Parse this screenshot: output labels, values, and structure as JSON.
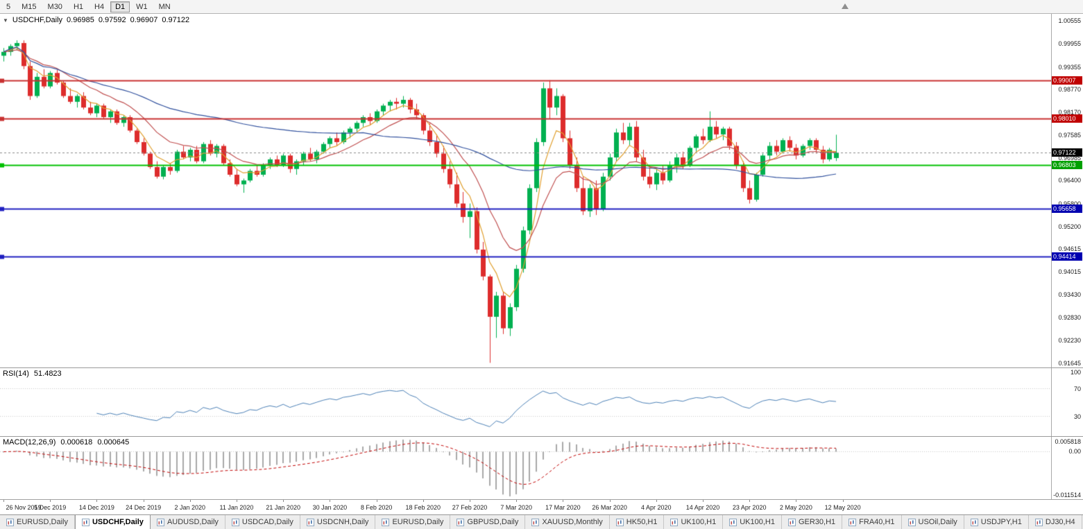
{
  "icons": {
    "collapse_arrow": "▼",
    "chart_shift_marker": "triangle-up",
    "tab_chart_icon": "mini-candlestick-chart"
  },
  "toolbar": {
    "buttons": [
      {
        "label": "5",
        "active": false
      },
      {
        "label": "M15",
        "active": false
      },
      {
        "label": "M30",
        "active": false
      },
      {
        "label": "H1",
        "active": false
      },
      {
        "label": "H4",
        "active": false
      },
      {
        "label": "D1",
        "active": true
      },
      {
        "label": "W1",
        "active": false
      },
      {
        "label": "MN",
        "active": false
      }
    ]
  },
  "chart_header": {
    "symbol": "USDCHF,Daily",
    "open": "0.96985",
    "high": "0.97592",
    "low": "0.96907",
    "close": "0.97122"
  },
  "price_axis": {
    "ticks": [
      "1.00555",
      "0.99955",
      "0.99355",
      "0.98770",
      "0.98170",
      "0.97585",
      "0.96985",
      "0.96400",
      "0.95800",
      "0.95200",
      "0.94615",
      "0.94015",
      "0.93430",
      "0.92830",
      "0.92230",
      "0.91645"
    ],
    "markers": [
      {
        "value": "0.99007",
        "bg": "#c00000"
      },
      {
        "value": "0.98010",
        "bg": "#c00000"
      },
      {
        "value": "0.97122",
        "bg": "#000000"
      },
      {
        "value": "0.96803",
        "bg": "#00a000"
      },
      {
        "value": "0.95658",
        "bg": "#0000b0"
      },
      {
        "value": "0.94414",
        "bg": "#0000b0"
      }
    ]
  },
  "chart_data": {
    "type": "candlestick",
    "symbol": "USDCHF",
    "timeframe": "Daily",
    "ylim": [
      0.9153,
      1.0074
    ],
    "label_every": 7,
    "x_labels": [
      "26 Nov 2019",
      "5 Dec 2019",
      "14 Dec 2019",
      "24 Dec 2019",
      "2 Jan 2020",
      "11 Jan 2020",
      "21 Jan 2020",
      "30 Jan 2020",
      "8 Feb 2020",
      "18 Feb 2020",
      "27 Feb 2020",
      "7 Mar 2020",
      "17 Mar 2020",
      "26 Mar 2020",
      "4 Apr 2020",
      "14 Apr 2020",
      "23 Apr 2020",
      "2 May 2020",
      "12 May 2020"
    ],
    "hlines": [
      {
        "price": 0.99007,
        "color": "#c83232",
        "width": 2
      },
      {
        "price": 0.9801,
        "color": "#c83232",
        "width": 2
      },
      {
        "price": 0.96803,
        "color": "#00c000",
        "width": 2
      },
      {
        "price": 0.95658,
        "color": "#2020c0",
        "width": 2
      },
      {
        "price": 0.94414,
        "color": "#2020c0",
        "width": 2
      }
    ],
    "current_price": {
      "price": 0.97122,
      "color": "#8a8a8a"
    },
    "colors": {
      "up": "#00b050",
      "down": "#dd2c2c"
    },
    "moving_averages": [
      {
        "period": 5,
        "method": "ema",
        "color": "#e0a030"
      },
      {
        "period": 13,
        "method": "ema",
        "color": "#c05050"
      },
      {
        "period": 55,
        "method": "sma",
        "color": "#30509d"
      }
    ],
    "candles": [
      [
        0.9965,
        0.9985,
        0.995,
        0.9975
      ],
      [
        0.9975,
        0.9995,
        0.9965,
        0.999
      ],
      [
        0.999,
        1.0005,
        0.998,
        0.9998
      ],
      [
        0.9998,
        1.0005,
        0.993,
        0.9938
      ],
      [
        0.9938,
        0.995,
        0.985,
        0.986
      ],
      [
        0.986,
        0.992,
        0.9855,
        0.991
      ],
      [
        0.991,
        0.993,
        0.988,
        0.9885
      ],
      [
        0.9885,
        0.9925,
        0.988,
        0.992
      ],
      [
        0.992,
        0.9928,
        0.989,
        0.9895
      ],
      [
        0.9895,
        0.99,
        0.9855,
        0.986
      ],
      [
        0.986,
        0.988,
        0.984,
        0.9845
      ],
      [
        0.9845,
        0.9865,
        0.983,
        0.986
      ],
      [
        0.986,
        0.987,
        0.9825,
        0.983
      ],
      [
        0.983,
        0.9845,
        0.981,
        0.9815
      ],
      [
        0.9815,
        0.984,
        0.9805,
        0.9835
      ],
      [
        0.9835,
        0.984,
        0.98,
        0.9805
      ],
      [
        0.9805,
        0.9825,
        0.979,
        0.982
      ],
      [
        0.982,
        0.9825,
        0.9785,
        0.979
      ],
      [
        0.979,
        0.981,
        0.978,
        0.9805
      ],
      [
        0.9805,
        0.981,
        0.9765,
        0.977
      ],
      [
        0.977,
        0.9775,
        0.9735,
        0.974
      ],
      [
        0.974,
        0.975,
        0.9705,
        0.971
      ],
      [
        0.971,
        0.9715,
        0.967,
        0.9675
      ],
      [
        0.9675,
        0.969,
        0.9645,
        0.965
      ],
      [
        0.965,
        0.968,
        0.9643,
        0.9675
      ],
      [
        0.9675,
        0.9685,
        0.9655,
        0.9665
      ],
      [
        0.9665,
        0.972,
        0.966,
        0.9715
      ],
      [
        0.9715,
        0.973,
        0.9695,
        0.97
      ],
      [
        0.97,
        0.9725,
        0.969,
        0.972
      ],
      [
        0.972,
        0.973,
        0.9685,
        0.969
      ],
      [
        0.969,
        0.974,
        0.9685,
        0.9735
      ],
      [
        0.9735,
        0.9745,
        0.9705,
        0.971
      ],
      [
        0.971,
        0.9735,
        0.97,
        0.973
      ],
      [
        0.973,
        0.9735,
        0.968,
        0.9685
      ],
      [
        0.9685,
        0.9695,
        0.965,
        0.9655
      ],
      [
        0.9655,
        0.967,
        0.9625,
        0.963
      ],
      [
        0.963,
        0.9645,
        0.9608,
        0.964
      ],
      [
        0.964,
        0.967,
        0.9635,
        0.9665
      ],
      [
        0.9665,
        0.968,
        0.965,
        0.9655
      ],
      [
        0.9655,
        0.9685,
        0.965,
        0.968
      ],
      [
        0.968,
        0.97,
        0.967,
        0.9695
      ],
      [
        0.9695,
        0.9705,
        0.9675,
        0.968
      ],
      [
        0.968,
        0.971,
        0.9675,
        0.9705
      ],
      [
        0.9705,
        0.971,
        0.966,
        0.967
      ],
      [
        0.967,
        0.9695,
        0.9655,
        0.969
      ],
      [
        0.969,
        0.9715,
        0.968,
        0.971
      ],
      [
        0.971,
        0.9725,
        0.969,
        0.9695
      ],
      [
        0.9695,
        0.972,
        0.9685,
        0.9715
      ],
      [
        0.9715,
        0.974,
        0.971,
        0.9735
      ],
      [
        0.9735,
        0.9755,
        0.9725,
        0.975
      ],
      [
        0.975,
        0.9765,
        0.973,
        0.974
      ],
      [
        0.974,
        0.977,
        0.9735,
        0.9765
      ],
      [
        0.9765,
        0.978,
        0.975,
        0.9775
      ],
      [
        0.9775,
        0.9795,
        0.9765,
        0.979
      ],
      [
        0.979,
        0.981,
        0.978,
        0.9805
      ],
      [
        0.9805,
        0.9815,
        0.9785,
        0.9795
      ],
      [
        0.9795,
        0.9825,
        0.979,
        0.982
      ],
      [
        0.982,
        0.984,
        0.981,
        0.9835
      ],
      [
        0.9835,
        0.985,
        0.982,
        0.9845
      ],
      [
        0.9845,
        0.9855,
        0.9825,
        0.984
      ],
      [
        0.984,
        0.986,
        0.983,
        0.985
      ],
      [
        0.985,
        0.9855,
        0.9815,
        0.9825
      ],
      [
        0.9825,
        0.984,
        0.98,
        0.981
      ],
      [
        0.981,
        0.9815,
        0.976,
        0.977
      ],
      [
        0.977,
        0.979,
        0.973,
        0.974
      ],
      [
        0.974,
        0.976,
        0.97,
        0.971
      ],
      [
        0.971,
        0.973,
        0.966,
        0.967
      ],
      [
        0.967,
        0.969,
        0.962,
        0.963
      ],
      [
        0.963,
        0.966,
        0.957,
        0.958
      ],
      [
        0.958,
        0.961,
        0.953,
        0.9545
      ],
      [
        0.9545,
        0.958,
        0.949,
        0.956
      ],
      [
        0.956,
        0.957,
        0.945,
        0.946
      ],
      [
        0.946,
        0.948,
        0.938,
        0.939
      ],
      [
        0.939,
        0.9395,
        0.9165,
        0.9285
      ],
      [
        0.9285,
        0.935,
        0.923,
        0.934
      ],
      [
        0.934,
        0.935,
        0.924,
        0.9255
      ],
      [
        0.9255,
        0.932,
        0.9235,
        0.931
      ],
      [
        0.931,
        0.942,
        0.93,
        0.941
      ],
      [
        0.941,
        0.952,
        0.94,
        0.951
      ],
      [
        0.951,
        0.963,
        0.95,
        0.962
      ],
      [
        0.962,
        0.975,
        0.961,
        0.974
      ],
      [
        0.974,
        0.9895,
        0.973,
        0.988
      ],
      [
        0.988,
        0.9901,
        0.98,
        0.983
      ],
      [
        0.983,
        0.988,
        0.981,
        0.986
      ],
      [
        0.986,
        0.9865,
        0.974,
        0.975
      ],
      [
        0.975,
        0.977,
        0.967,
        0.968
      ],
      [
        0.968,
        0.97,
        0.961,
        0.962
      ],
      [
        0.962,
        0.965,
        0.955,
        0.956
      ],
      [
        0.956,
        0.963,
        0.9545,
        0.962
      ],
      [
        0.962,
        0.964,
        0.955,
        0.9565
      ],
      [
        0.9565,
        0.966,
        0.956,
        0.965
      ],
      [
        0.965,
        0.971,
        0.964,
        0.97
      ],
      [
        0.97,
        0.9775,
        0.969,
        0.9765
      ],
      [
        0.9765,
        0.979,
        0.9735,
        0.9745
      ],
      [
        0.9745,
        0.979,
        0.973,
        0.978
      ],
      [
        0.978,
        0.9795,
        0.969,
        0.97
      ],
      [
        0.97,
        0.972,
        0.964,
        0.965
      ],
      [
        0.965,
        0.968,
        0.962,
        0.963
      ],
      [
        0.963,
        0.967,
        0.9615,
        0.966
      ],
      [
        0.966,
        0.968,
        0.963,
        0.964
      ],
      [
        0.964,
        0.969,
        0.9635,
        0.968
      ],
      [
        0.968,
        0.971,
        0.966,
        0.97
      ],
      [
        0.97,
        0.9715,
        0.967,
        0.968
      ],
      [
        0.968,
        0.973,
        0.9675,
        0.9725
      ],
      [
        0.9725,
        0.976,
        0.9715,
        0.9755
      ],
      [
        0.9755,
        0.9775,
        0.9735,
        0.9745
      ],
      [
        0.9745,
        0.982,
        0.974,
        0.978
      ],
      [
        0.978,
        0.9795,
        0.975,
        0.976
      ],
      [
        0.976,
        0.978,
        0.9745,
        0.9775
      ],
      [
        0.9775,
        0.978,
        0.972,
        0.973
      ],
      [
        0.973,
        0.974,
        0.967,
        0.968
      ],
      [
        0.968,
        0.969,
        0.961,
        0.962
      ],
      [
        0.962,
        0.964,
        0.958,
        0.959
      ],
      [
        0.959,
        0.966,
        0.9585,
        0.9655
      ],
      [
        0.9655,
        0.971,
        0.965,
        0.9705
      ],
      [
        0.9705,
        0.974,
        0.9695,
        0.973
      ],
      [
        0.973,
        0.9745,
        0.9705,
        0.9715
      ],
      [
        0.9715,
        0.975,
        0.971,
        0.9745
      ],
      [
        0.9745,
        0.9755,
        0.9715,
        0.9725
      ],
      [
        0.9725,
        0.9735,
        0.9695,
        0.9705
      ],
      [
        0.9705,
        0.9735,
        0.97,
        0.973
      ],
      [
        0.973,
        0.975,
        0.972,
        0.9745
      ],
      [
        0.9745,
        0.975,
        0.971,
        0.972
      ],
      [
        0.972,
        0.973,
        0.9685,
        0.9695
      ],
      [
        0.9695,
        0.9725,
        0.969,
        0.972
      ],
      [
        0.96985,
        0.97592,
        0.96907,
        0.97122
      ]
    ]
  },
  "rsi": {
    "name": "RSI(14)",
    "value": "51.4823",
    "period": 14,
    "color": "#4a7fb5",
    "ylim": [
      0,
      100
    ],
    "grid_levels": [
      70,
      30
    ],
    "axis_labels": [
      {
        "text": "100",
        "value": 100
      },
      {
        "text": "70",
        "value": 70
      },
      {
        "text": "30",
        "value": 30
      }
    ]
  },
  "macd": {
    "name": "MACD(12,26,9)",
    "value_main": "0.000618",
    "value_signal": "0.000645",
    "fast": 12,
    "slow": 26,
    "signal": 9,
    "hist_color": "#a8a8a8",
    "signal_color": "#c00000",
    "axis_labels": [
      "0.005818",
      "0.00",
      "-0.011514"
    ]
  },
  "tabs": [
    {
      "label": "EURUSD,Daily",
      "active": false
    },
    {
      "label": "USDCHF,Daily",
      "active": true
    },
    {
      "label": "AUDUSD,Daily",
      "active": false
    },
    {
      "label": "USDCAD,Daily",
      "active": false
    },
    {
      "label": "USDCNH,Daily",
      "active": false
    },
    {
      "label": "EURUSD,Daily",
      "active": false
    },
    {
      "label": "GBPUSD,Daily",
      "active": false
    },
    {
      "label": "XAUUSD,Monthly",
      "active": false
    },
    {
      "label": "HK50,H1",
      "active": false
    },
    {
      "label": "UK100,H1",
      "active": false
    },
    {
      "label": "UK100,H1",
      "active": false
    },
    {
      "label": "GER30,H1",
      "active": false
    },
    {
      "label": "FRA40,H1",
      "active": false
    },
    {
      "label": "USOil,Daily",
      "active": false
    },
    {
      "label": "USDJPY,H1",
      "active": false
    },
    {
      "label": "DJ30,H4",
      "active": false
    }
  ]
}
